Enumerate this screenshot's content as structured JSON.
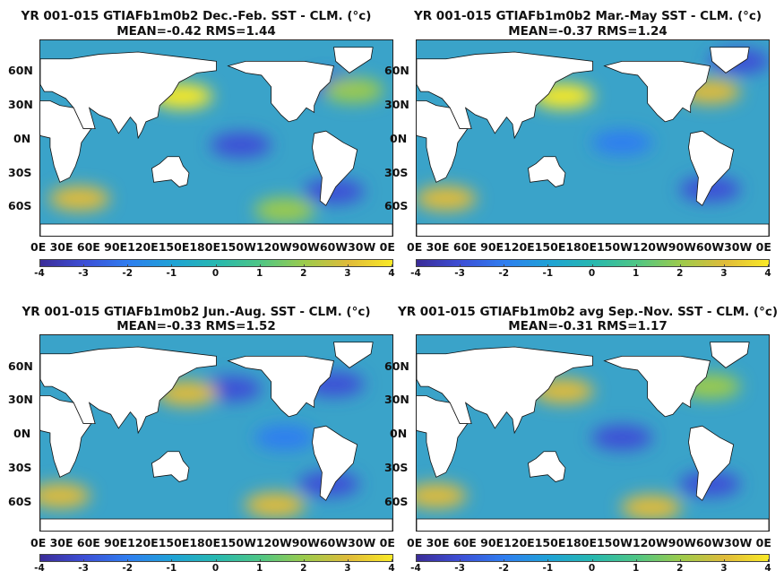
{
  "chart_data": [
    {
      "type": "heatmap",
      "title": "YR 001-015 GTIAFb1m0b2  Dec.-Feb. SST - CLM. (°c)",
      "subtitle": "MEAN=-0.42   RMS=1.44",
      "mean": -0.42,
      "rms": 1.44,
      "yticks": [
        "60N",
        "30N",
        "0N",
        "30S",
        "60S"
      ],
      "xticks": [
        "0E",
        "30E",
        "60E",
        "90E",
        "120E",
        "150E",
        "180E",
        "150W",
        "120W",
        "90W",
        "60W",
        "30W",
        "0E"
      ],
      "xtick_text": "0E  30E 60E 90E120E150E180E150W120W90W60W30W  0E",
      "colorbar": {
        "ticks": [
          "-4",
          "-3",
          "-2",
          "-1",
          "0",
          "1",
          "2",
          "3",
          "4"
        ],
        "range": [
          -4,
          4
        ]
      }
    },
    {
      "type": "heatmap",
      "title": "YR 001-015 GTIAFb1m0b2 Mar.-May SST - CLM. (°c)",
      "subtitle": "MEAN=-0.37   RMS=1.24",
      "mean": -0.37,
      "rms": 1.24,
      "yticks": [
        "60N",
        "30N",
        "0N",
        "30S",
        "60S"
      ],
      "xticks": [
        "0E",
        "30E",
        "60E",
        "90E",
        "120E",
        "150E",
        "180E",
        "150W",
        "120W",
        "90W",
        "60W",
        "30W",
        "0E"
      ],
      "xtick_text": "0E  30E 60E 90E120E150E180E150W120W90W60W30W  0E",
      "colorbar": {
        "ticks": [
          "-4",
          "-3",
          "-2",
          "-1",
          "0",
          "1",
          "2",
          "3",
          "4"
        ],
        "range": [
          -4,
          4
        ]
      }
    },
    {
      "type": "heatmap",
      "title": "YR 001-015 GTIAFb1m0b2 Jun.-Aug. SST - CLM. (°c)",
      "subtitle": "MEAN=-0.33   RMS=1.52",
      "mean": -0.33,
      "rms": 1.52,
      "yticks": [
        "60N",
        "30N",
        "0N",
        "30S",
        "60S"
      ],
      "xticks": [
        "0E",
        "30E",
        "60E",
        "90E",
        "120E",
        "150E",
        "180E",
        "150W",
        "120W",
        "90W",
        "60W",
        "30W",
        "0E"
      ],
      "xtick_text": "0E  30E 60E 90E120E150E180E150W120W90W60W30W  0E",
      "colorbar": {
        "ticks": [
          "-4",
          "-3",
          "-2",
          "-1",
          "0",
          "1",
          "2",
          "3",
          "4"
        ],
        "range": [
          -4,
          4
        ]
      }
    },
    {
      "type": "heatmap",
      "title": "YR 001-015 GTIAFb1m0b2 avg Sep.-Nov. SST - CLM. (°c)",
      "subtitle": "MEAN=-0.31   RMS=1.17",
      "mean": -0.31,
      "rms": 1.17,
      "yticks": [
        "60N",
        "30N",
        "0N",
        "30S",
        "60S"
      ],
      "xticks": [
        "0E",
        "30E",
        "60E",
        "90E",
        "120E",
        "150E",
        "180E",
        "150W",
        "120W",
        "90W",
        "60W",
        "30W",
        "0E"
      ],
      "xtick_text": "0E  30E 60E 90E120E150E180E150W120W90W60W30W  0E",
      "colorbar": {
        "ticks": [
          "-4",
          "-3",
          "-2",
          "-1",
          "0",
          "1",
          "2",
          "3",
          "4"
        ],
        "range": [
          -4,
          4
        ]
      }
    }
  ],
  "colors": {
    "colormap": [
      "#3b2c98",
      "#3d4fd6",
      "#2f7ef0",
      "#1fa2d6",
      "#27b8b0",
      "#4fc685",
      "#9ccb4c",
      "#e0bb3a",
      "#f9e926"
    ],
    "land": "#ffffff",
    "ocean_base": "#3aa3c9"
  }
}
